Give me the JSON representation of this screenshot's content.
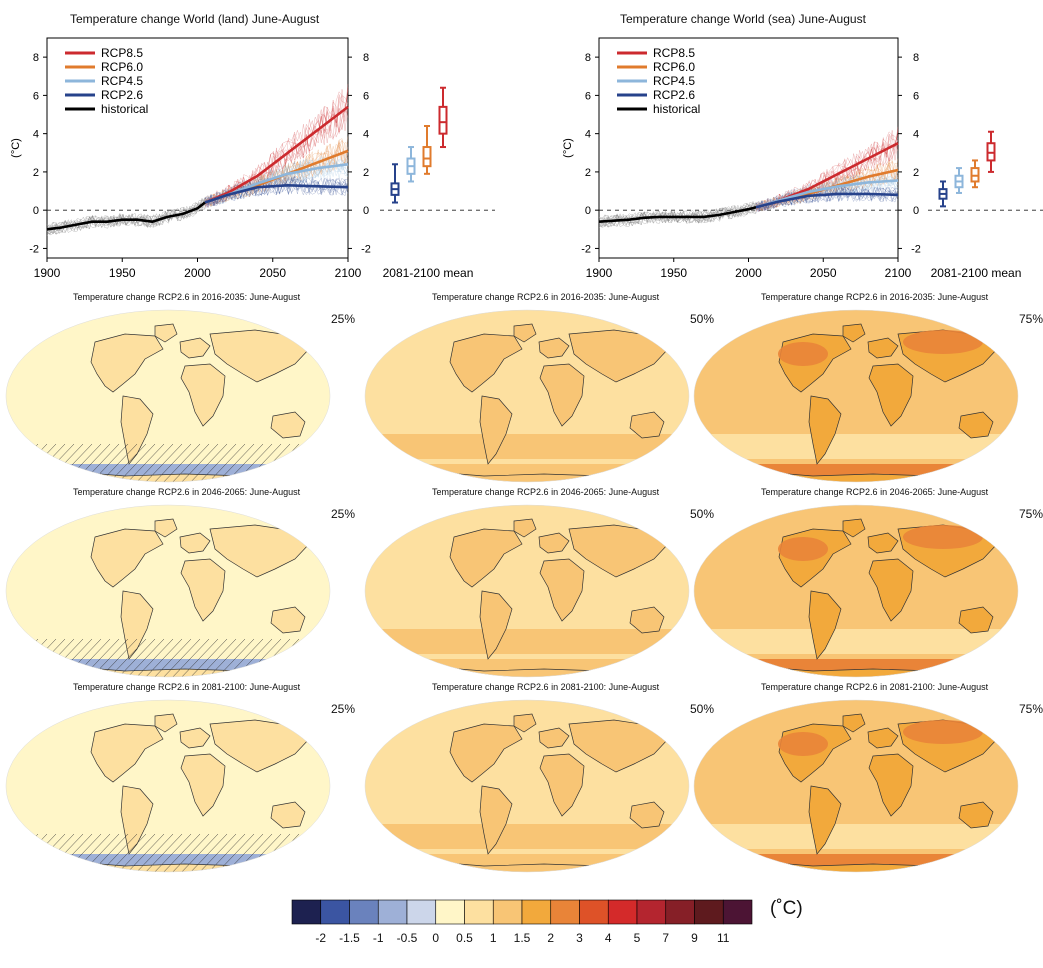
{
  "chart_data": [
    {
      "type": "line",
      "title": "Temperature change World (land) June-August",
      "ylabel": "(°C)",
      "xlim": [
        1900,
        2100
      ],
      "ylim": [
        -2.5,
        9
      ],
      "yticks": [
        -2,
        0,
        2,
        4,
        6,
        8
      ],
      "xticks": [
        1900,
        1950,
        2000,
        2050,
        2100
      ],
      "legend": "top-left",
      "grid": false,
      "boxplot_label": "2081-2100 mean",
      "series": [
        {
          "name": "RCP8.5",
          "color": "#cc2a2e",
          "x": [
            2005,
            2020,
            2040,
            2060,
            2080,
            2100
          ],
          "y": [
            0.4,
            0.9,
            1.8,
            3.0,
            4.2,
            5.4
          ]
        },
        {
          "name": "RCP6.0",
          "color": "#e07b2d",
          "x": [
            2005,
            2020,
            2040,
            2060,
            2080,
            2100
          ],
          "y": [
            0.4,
            0.8,
            1.3,
            1.9,
            2.5,
            3.1
          ]
        },
        {
          "name": "RCP4.5",
          "color": "#8db6db",
          "x": [
            2005,
            2020,
            2040,
            2060,
            2080,
            2100
          ],
          "y": [
            0.4,
            0.8,
            1.4,
            1.9,
            2.2,
            2.4
          ]
        },
        {
          "name": "RCP2.6",
          "color": "#26428b",
          "x": [
            2005,
            2020,
            2040,
            2060,
            2080,
            2100
          ],
          "y": [
            0.4,
            0.8,
            1.2,
            1.3,
            1.25,
            1.2
          ]
        },
        {
          "name": "historical",
          "color": "#000000",
          "x": [
            1900,
            1910,
            1920,
            1930,
            1940,
            1950,
            1960,
            1970,
            1980,
            1990,
            2000,
            2005
          ],
          "y": [
            -1.0,
            -0.9,
            -0.75,
            -0.6,
            -0.6,
            -0.5,
            -0.5,
            -0.6,
            -0.35,
            -0.2,
            0.1,
            0.4
          ]
        }
      ],
      "boxes": [
        {
          "name": "RCP2.6",
          "color": "#26428b",
          "min": 0.4,
          "q1": 0.8,
          "median": 1.1,
          "q3": 1.4,
          "max": 2.4
        },
        {
          "name": "RCP4.5",
          "color": "#8db6db",
          "min": 1.5,
          "q1": 1.9,
          "median": 2.3,
          "q3": 2.7,
          "max": 3.3
        },
        {
          "name": "RCP6.0",
          "color": "#e07b2d",
          "min": 1.9,
          "q1": 2.3,
          "median": 2.7,
          "q3": 3.3,
          "max": 4.4
        },
        {
          "name": "RCP8.5",
          "color": "#cc2a2e",
          "min": 3.3,
          "q1": 4.0,
          "median": 4.6,
          "q3": 5.4,
          "max": 6.4
        }
      ]
    },
    {
      "type": "line",
      "title": "Temperature change World (sea) June-August",
      "ylabel": "(°C)",
      "xlim": [
        1900,
        2100
      ],
      "ylim": [
        -2.5,
        9
      ],
      "yticks": [
        -2,
        0,
        2,
        4,
        6,
        8
      ],
      "xticks": [
        1900,
        1950,
        2000,
        2050,
        2100
      ],
      "legend": "top-left",
      "grid": false,
      "boxplot_label": "2081-2100 mean",
      "series": [
        {
          "name": "RCP8.5",
          "color": "#cc2a2e",
          "x": [
            2005,
            2020,
            2040,
            2060,
            2080,
            2100
          ],
          "y": [
            0.15,
            0.5,
            1.1,
            1.9,
            2.7,
            3.5
          ]
        },
        {
          "name": "RCP6.0",
          "color": "#e07b2d",
          "x": [
            2005,
            2020,
            2040,
            2060,
            2080,
            2100
          ],
          "y": [
            0.15,
            0.45,
            0.85,
            1.3,
            1.75,
            2.1
          ]
        },
        {
          "name": "RCP4.5",
          "color": "#8db6db",
          "x": [
            2005,
            2020,
            2040,
            2060,
            2080,
            2100
          ],
          "y": [
            0.15,
            0.5,
            0.95,
            1.25,
            1.45,
            1.55
          ]
        },
        {
          "name": "RCP2.6",
          "color": "#26428b",
          "x": [
            2005,
            2020,
            2040,
            2060,
            2080,
            2100
          ],
          "y": [
            0.15,
            0.45,
            0.75,
            0.85,
            0.85,
            0.8
          ]
        },
        {
          "name": "historical",
          "color": "#000000",
          "x": [
            1900,
            1910,
            1920,
            1930,
            1940,
            1950,
            1960,
            1970,
            1980,
            1990,
            2000,
            2005
          ],
          "y": [
            -0.6,
            -0.55,
            -0.5,
            -0.4,
            -0.35,
            -0.35,
            -0.35,
            -0.35,
            -0.25,
            -0.1,
            0.05,
            0.15
          ]
        }
      ],
      "boxes": [
        {
          "name": "RCP2.6",
          "color": "#26428b",
          "min": 0.2,
          "q1": 0.6,
          "median": 0.85,
          "q3": 1.1,
          "max": 1.5
        },
        {
          "name": "RCP4.5",
          "color": "#8db6db",
          "min": 0.9,
          "q1": 1.2,
          "median": 1.5,
          "q3": 1.8,
          "max": 2.2
        },
        {
          "name": "RCP6.0",
          "color": "#e07b2d",
          "min": 1.2,
          "q1": 1.5,
          "median": 1.8,
          "q3": 2.2,
          "max": 2.6
        },
        {
          "name": "RCP8.5",
          "color": "#cc2a2e",
          "min": 2.0,
          "q1": 2.6,
          "median": 3.0,
          "q3": 3.5,
          "max": 4.1
        }
      ]
    },
    {
      "type": "heatmap",
      "maps": [
        {
          "title": "Temperature change RCP2.6 in 2016-2035: June-August",
          "percentile": "25%",
          "level": 0
        },
        {
          "title": "Temperature change RCP2.6 in 2016-2035: June-August",
          "percentile": "50%",
          "level": 1
        },
        {
          "title": "Temperature change RCP2.6 in 2016-2035: June-August",
          "percentile": "75%",
          "level": 2
        },
        {
          "title": "Temperature change RCP2.6 in 2046-2065: June-August",
          "percentile": "25%",
          "level": 0
        },
        {
          "title": "Temperature change RCP2.6 in 2046-2065: June-August",
          "percentile": "50%",
          "level": 1
        },
        {
          "title": "Temperature change RCP2.6 in 2046-2065: June-August",
          "percentile": "75%",
          "level": 3
        },
        {
          "title": "Temperature change RCP2.6 in 2081-2100: June-August",
          "percentile": "25%",
          "level": 0
        },
        {
          "title": "Temperature change RCP2.6 in 2081-2100: June-August",
          "percentile": "50%",
          "level": 1
        },
        {
          "title": "Temperature change RCP2.6 in 2081-2100: June-August",
          "percentile": "75%",
          "level": 3
        }
      ]
    }
  ],
  "colorbar": {
    "unit": "(˚C)",
    "labels": [
      "-2",
      "-1.5",
      "-1",
      "-0.5",
      "0",
      "0.5",
      "1",
      "1.5",
      "2",
      "3",
      "4",
      "5",
      "7",
      "9",
      "11"
    ],
    "colors": [
      "#1d2150",
      "#3b55a2",
      "#6a82bd",
      "#9eb0d7",
      "#ccd6ea",
      "#fff6c8",
      "#fde0a0",
      "#f8c575",
      "#f2a93c",
      "#e98438",
      "#de5228",
      "#d42a2a",
      "#b4252f",
      "#861f27",
      "#5e1a1e",
      "#4c1434"
    ]
  }
}
